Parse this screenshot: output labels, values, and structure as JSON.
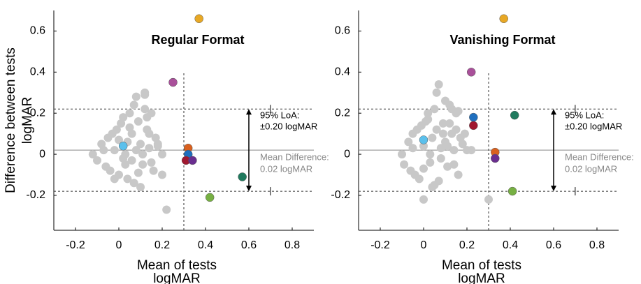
{
  "chart_data": [
    {
      "type": "scatter",
      "title": "Regular Format",
      "y_label": [
        "Difference between tests",
        "logMAR"
      ],
      "x_label": [
        "Mean of tests",
        "logMAR"
      ],
      "xlim": [
        -0.3,
        0.9
      ],
      "ylim": [
        -0.37,
        0.7
      ],
      "xticks": [
        -0.2,
        0,
        0.2,
        0.4,
        0.6,
        0.8
      ],
      "yticks": [
        -0.2,
        0,
        0.2,
        0.4,
        0.6
      ],
      "mean_difference": 0.02,
      "loa": [
        -0.18,
        0.22
      ],
      "vline": 0.3,
      "annotations": [
        "95% LoA:",
        "±0.20 logMAR",
        "Mean Difference:",
        "0.02 logMAR"
      ],
      "series": [
        {
          "color": "#c8c8c8",
          "x": [
            -0.12,
            -0.1,
            -0.08,
            -0.06,
            -0.05,
            -0.04,
            -0.03,
            -0.02,
            -0.01,
            0.0,
            0.01,
            0.02,
            0.03,
            0.04,
            0.05,
            0.06,
            0.07,
            0.08,
            0.09,
            0.1,
            0.11,
            0.12,
            0.13,
            0.14,
            0.15,
            0.16,
            0.17,
            0.18,
            0.2,
            0.04,
            0.06,
            0.08,
            0.1,
            0.12,
            0.14,
            -0.02,
            0.0,
            0.02,
            0.05,
            0.07,
            0.09,
            0.11,
            0.13,
            0.15,
            0.2,
            0.22,
            0.18,
            0.12,
            0.03,
            -0.07
          ],
          "values": [
            0.0,
            -0.03,
            0.05,
            -0.06,
            0.08,
            -0.08,
            0.1,
            -0.12,
            0.12,
            -0.1,
            0.15,
            0.18,
            -0.05,
            0.06,
            0.2,
            0.1,
            -0.14,
            0.02,
            0.16,
            0.05,
            -0.05,
            0.3,
            0.12,
            0.03,
            0.2,
            -0.08,
            0.08,
            0.04,
            0.0,
            -0.12,
            -0.03,
            0.28,
            -0.16,
            0.22,
            0.1,
            0.02,
            0.07,
            -0.02,
            0.13,
            0.24,
            -0.09,
            0.0,
            0.18,
            -0.04,
            -0.1,
            -0.27,
            0.05,
            0.29,
            0.0,
            0.02
          ]
        },
        {
          "color": "#e8a825",
          "x": [
            0.37
          ],
          "values": [
            0.66
          ]
        },
        {
          "color": "#a9509a",
          "x": [
            0.25
          ],
          "values": [
            0.35
          ]
        },
        {
          "color": "#5bc0ec",
          "x": [
            0.02
          ],
          "values": [
            0.04
          ]
        },
        {
          "color": "#d9601e",
          "x": [
            0.32
          ],
          "values": [
            0.03
          ]
        },
        {
          "color": "#1f6fbf",
          "x": [
            0.32
          ],
          "values": [
            0.0
          ]
        },
        {
          "color": "#a01830",
          "x": [
            0.31
          ],
          "values": [
            -0.03
          ]
        },
        {
          "color": "#6a2e8f",
          "x": [
            0.34
          ],
          "values": [
            -0.03
          ]
        },
        {
          "color": "#207a5e",
          "x": [
            0.57
          ],
          "values": [
            -0.11
          ]
        },
        {
          "color": "#77b043",
          "x": [
            0.42
          ],
          "values": [
            -0.21
          ]
        }
      ]
    },
    {
      "type": "scatter",
      "title": "Vanishing Format",
      "x_label": [
        "Mean of tests",
        "logMAR"
      ],
      "xlim": [
        -0.3,
        0.9
      ],
      "ylim": [
        -0.37,
        0.7
      ],
      "xticks": [
        -0.2,
        0,
        0.2,
        0.4,
        0.6,
        0.8
      ],
      "yticks": [
        -0.2,
        0,
        0.2,
        0.4,
        0.6
      ],
      "mean_difference": 0.02,
      "loa": [
        -0.18,
        0.22
      ],
      "vline": 0.3,
      "annotations": [
        "95% LoA:",
        "±0.20 logMAR",
        "Mean Difference:",
        "0.02 logMAR"
      ],
      "series": [
        {
          "color": "#c8c8c8",
          "x": [
            -0.1,
            -0.09,
            -0.07,
            -0.06,
            -0.05,
            -0.04,
            -0.03,
            -0.02,
            -0.01,
            0.0,
            0.01,
            0.02,
            0.03,
            0.04,
            0.05,
            0.06,
            0.07,
            0.08,
            0.09,
            0.1,
            0.11,
            0.12,
            0.13,
            0.14,
            0.15,
            0.16,
            0.17,
            0.18,
            0.2,
            0.07,
            0.06,
            0.04,
            0.0,
            0.02,
            0.08,
            0.12,
            0.1,
            0.14,
            0.16,
            -0.05,
            0.03,
            0.05,
            0.09,
            0.11,
            0.19,
            0.22,
            0.3,
            0.15,
            0.0,
            0.13
          ],
          "values": [
            0.0,
            -0.05,
            0.06,
            -0.08,
            0.1,
            -0.1,
            0.12,
            -0.12,
            0.14,
            -0.07,
            0.16,
            0.2,
            -0.04,
            0.08,
            0.22,
            0.12,
            -0.13,
            0.03,
            0.15,
            0.06,
            -0.06,
            0.24,
            0.1,
            0.02,
            0.2,
            -0.1,
            0.08,
            0.05,
            0.02,
            0.34,
            0.3,
            -0.16,
            0.04,
            0.17,
            -0.02,
            0.15,
            0.26,
            -0.05,
            0.21,
            0.03,
            0.0,
            -0.15,
            0.1,
            0.04,
            0.1,
            0.02,
            -0.22,
            0.12,
            -0.22,
            0.22
          ]
        },
        {
          "color": "#e8a825",
          "x": [
            0.37
          ],
          "values": [
            0.66
          ]
        },
        {
          "color": "#a9509a",
          "x": [
            0.22
          ],
          "values": [
            0.4
          ]
        },
        {
          "color": "#1f6fbf",
          "x": [
            0.23
          ],
          "values": [
            0.18
          ]
        },
        {
          "color": "#a01830",
          "x": [
            0.23
          ],
          "values": [
            0.14
          ]
        },
        {
          "color": "#207a5e",
          "x": [
            0.42
          ],
          "values": [
            0.19
          ]
        },
        {
          "color": "#5bc0ec",
          "x": [
            0.0
          ],
          "values": [
            0.07
          ]
        },
        {
          "color": "#d9601e",
          "x": [
            0.33
          ],
          "values": [
            0.01
          ]
        },
        {
          "color": "#6a2e8f",
          "x": [
            0.33
          ],
          "values": [
            -0.02
          ]
        },
        {
          "color": "#77b043",
          "x": [
            0.41
          ],
          "values": [
            -0.18
          ]
        }
      ]
    }
  ]
}
